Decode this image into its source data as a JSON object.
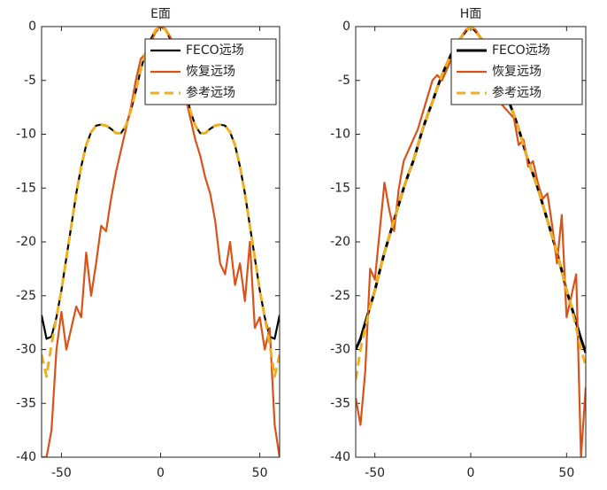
{
  "chart_data": [
    {
      "type": "line",
      "title": "E面",
      "x": [
        -60,
        -57.5,
        -55,
        -52.5,
        -50,
        -47.5,
        -45,
        -42.5,
        -40,
        -37.5,
        -35,
        -32.5,
        -30,
        -27.5,
        -25,
        -22.5,
        -20,
        -17.5,
        -15,
        -12.5,
        -10,
        -7.5,
        -5,
        -2.5,
        0,
        2.5,
        5,
        7.5,
        10,
        12.5,
        15,
        17.5,
        20,
        22.5,
        25,
        27.5,
        30,
        32.5,
        35,
        37.5,
        40,
        42.5,
        45,
        47.5,
        50,
        52.5,
        55,
        57.5,
        60
      ],
      "series": [
        {
          "name": "FECO远场",
          "color": "#000000",
          "values": [
            -26.8,
            -29,
            -28.8,
            -27,
            -24.5,
            -21.5,
            -18.5,
            -15.5,
            -13,
            -11,
            -9.8,
            -9.2,
            -9.1,
            -9.2,
            -9.5,
            -9.9,
            -9.9,
            -9.2,
            -7.8,
            -6,
            -4,
            -2.4,
            -1.2,
            -0.3,
            0,
            -0.3,
            -1.2,
            -2.4,
            -4,
            -6,
            -7.8,
            -9.2,
            -9.9,
            -9.9,
            -9.5,
            -9.2,
            -9.1,
            -9.2,
            -9.8,
            -11,
            -13,
            -15.5,
            -18.5,
            -21.5,
            -24.5,
            -27,
            -28.8,
            -29,
            -26.8
          ]
        },
        {
          "name": "恢复远场",
          "color": "#d95319",
          "values": [
            -40,
            -40,
            -37.5,
            -30,
            -26.5,
            -30,
            -28,
            -26,
            -27,
            -21,
            -25,
            -22,
            -18.5,
            -19,
            -16,
            -13.5,
            -11.5,
            -9.5,
            -7.5,
            -5,
            -3,
            -2.5,
            -1.5,
            -0.5,
            0,
            -0.2,
            -1,
            -2.5,
            -5.5,
            -6.5,
            -8.5,
            -10.5,
            -12,
            -14,
            -15.5,
            -18,
            -22,
            -23,
            -20,
            -24,
            -22,
            -25.5,
            -20,
            -28,
            -27,
            -30,
            -28,
            -37,
            -40
          ]
        },
        {
          "name": "参考远场",
          "color": "#edb120",
          "dashed": true,
          "values": [
            -30.5,
            -32.5,
            -29.5,
            -27,
            -24.5,
            -21.5,
            -18.5,
            -15.5,
            -13,
            -11,
            -9.8,
            -9.2,
            -9.1,
            -9.2,
            -9.5,
            -9.9,
            -9.9,
            -9.2,
            -7.8,
            -6,
            -4,
            -2.4,
            -1.2,
            -0.3,
            0,
            -0.3,
            -1.2,
            -2.4,
            -4,
            -6,
            -7.8,
            -9.2,
            -9.9,
            -9.9,
            -9.5,
            -9.2,
            -9.1,
            -9.2,
            -9.8,
            -11,
            -13,
            -15.5,
            -18.5,
            -21.5,
            -24.5,
            -27,
            -29.5,
            -32.5,
            -30.5
          ]
        }
      ],
      "xlim": [
        -60,
        60
      ],
      "xticks": [
        -50,
        0,
        50
      ],
      "ylim": [
        -40,
        0
      ],
      "yticks": [
        0,
        -5,
        -10,
        -15,
        -20,
        -25,
        -30,
        -35,
        -40
      ],
      "grid": false,
      "legend": "upper right"
    },
    {
      "type": "line",
      "title": "H面",
      "x": [
        -60,
        -57.5,
        -55,
        -52.5,
        -50,
        -47.5,
        -45,
        -42.5,
        -40,
        -37.5,
        -35,
        -32.5,
        -30,
        -27.5,
        -25,
        -22.5,
        -20,
        -17.5,
        -15,
        -12.5,
        -10,
        -7.5,
        -5,
        -2.5,
        0,
        2.5,
        5,
        7.5,
        10,
        12.5,
        15,
        17.5,
        20,
        22.5,
        25,
        27.5,
        30,
        32.5,
        35,
        37.5,
        40,
        42.5,
        45,
        47.5,
        50,
        52.5,
        55,
        57.5,
        60
      ],
      "series": [
        {
          "name": "FECO远场",
          "color": "#000000",
          "thick": true,
          "values": [
            -30,
            -29,
            -27.5,
            -26,
            -24.5,
            -22.7,
            -21,
            -19.5,
            -18,
            -16.5,
            -15,
            -13.7,
            -12.5,
            -11,
            -9.5,
            -8.2,
            -7,
            -5.7,
            -4.5,
            -3.5,
            -2.5,
            -1.7,
            -1,
            -0.4,
            0,
            -0.4,
            -1,
            -1.7,
            -2.5,
            -3.5,
            -4.5,
            -5.7,
            -7,
            -8.2,
            -9.5,
            -11,
            -12.5,
            -13.7,
            -15,
            -16.5,
            -18,
            -19.5,
            -21,
            -22.7,
            -24.5,
            -26,
            -27.5,
            -29,
            -30.3
          ]
        },
        {
          "name": "恢复远场",
          "color": "#d95319",
          "values": [
            -34.5,
            -37,
            -32,
            -22.5,
            -23.5,
            -19,
            -14.5,
            -17,
            -19,
            -15,
            -12.5,
            -11.5,
            -10.5,
            -9.5,
            -8,
            -6.5,
            -5,
            -4.5,
            -5,
            -4,
            -3,
            -2,
            -1,
            -0.3,
            0,
            -0.3,
            -1,
            -2,
            -4,
            -6,
            -7,
            -7.5,
            -8,
            -8.5,
            -11,
            -10.5,
            -13,
            -12.5,
            -14.5,
            -16,
            -15.5,
            -18.5,
            -22,
            -17.5,
            -27,
            -25,
            -23,
            -40,
            -33.5
          ]
        },
        {
          "name": "参考远场",
          "color": "#edb120",
          "dashed": true,
          "values": [
            -32.8,
            -30,
            -28,
            -26,
            -24.5,
            -22.7,
            -21,
            -19.5,
            -18,
            -16.5,
            -15,
            -13.7,
            -12.5,
            -11,
            -9.5,
            -8.2,
            -7,
            -5.7,
            -4.5,
            -3.5,
            -2.5,
            -1.7,
            -1,
            -0.4,
            0,
            -0.4,
            -1,
            -1.7,
            -2.5,
            -3.5,
            -4.5,
            -5.7,
            -7,
            -8.2,
            -9.5,
            -11,
            -12.5,
            -13.7,
            -15,
            -16.5,
            -18,
            -19.5,
            -21,
            -22.7,
            -24.5,
            -26,
            -28,
            -30,
            -31.5
          ]
        }
      ],
      "xlim": [
        -60,
        60
      ],
      "xticks": [
        -50,
        0,
        50
      ],
      "ylim": [
        -40,
        0
      ],
      "yticks": [
        0,
        -5,
        -10,
        -15,
        -20,
        -25,
        -30,
        -35,
        -40
      ],
      "grid": false,
      "legend": "upper right"
    }
  ]
}
